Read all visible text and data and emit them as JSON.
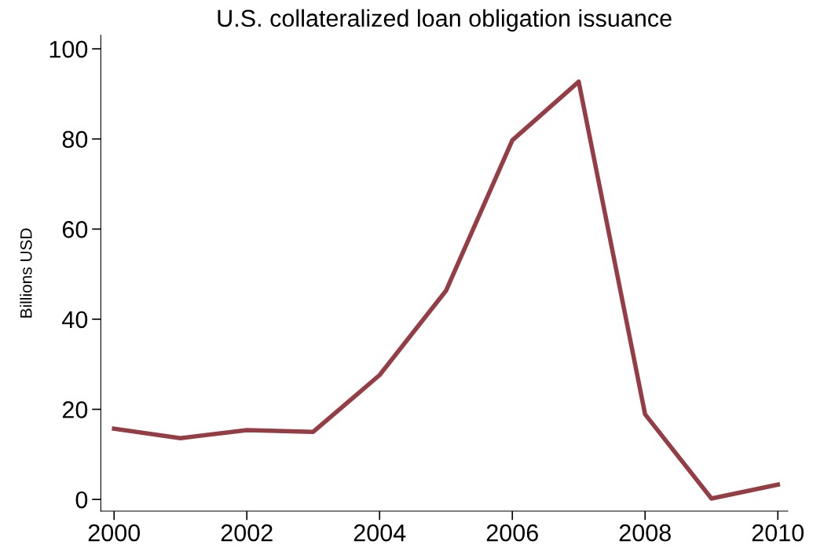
{
  "chart_data": {
    "type": "line",
    "title": "U.S. collateralized loan obligation issuance",
    "ylabel": "Billions USD",
    "x": [
      2000,
      2001,
      2002,
      2003,
      2004,
      2005,
      2006,
      2007,
      2008,
      2009,
      2010
    ],
    "series": [
      {
        "color": "#943d44",
        "values": [
          15.7,
          13.6,
          15.4,
          15.0,
          27.6,
          46.3,
          79.7,
          92.7,
          18.9,
          0.2,
          3.3
        ]
      }
    ],
    "xlim": [
      1999.8,
      2010.15
    ],
    "ylim": [
      -2.6,
      103
    ],
    "xticks": [
      2000,
      2002,
      2004,
      2006,
      2008,
      2010
    ],
    "yticks": [
      0,
      20,
      40,
      60,
      80,
      100
    ],
    "grid": false,
    "legend": false,
    "marker": "none",
    "line_style": "solid"
  }
}
